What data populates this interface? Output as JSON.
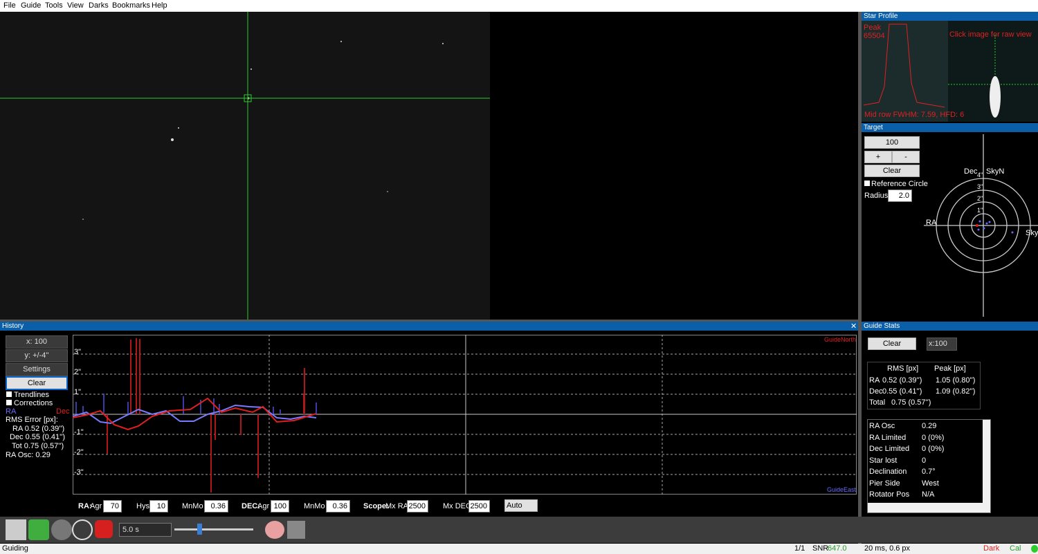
{
  "menu": [
    "File",
    "Guide",
    "Tools",
    "View",
    "Darks",
    "Bookmarks",
    "Help"
  ],
  "star_profile": {
    "title": "Star Profile",
    "peak_label": "Peak",
    "peak_value": "65504",
    "hint": "Click image for raw view",
    "fwhm": "Mid row FWHM: 7.59, HFD: 6"
  },
  "target": {
    "title": "Target",
    "scale": "100",
    "plus": "+",
    "minus": "-",
    "clear": "Clear",
    "ref_circle": "Reference Circle",
    "radius_label": "Radius:",
    "radius": "2.0",
    "dec": "Dec",
    "sky_n": "SkyN",
    "ra": "RA",
    "sky_e": "SkyE",
    "rings": [
      "4\"",
      "3\"",
      "2\"",
      "1\""
    ]
  },
  "history": {
    "title": "History",
    "close": "✕",
    "x_scale": "x: 100",
    "y_scale": "y: +/-4''",
    "settings": "Settings",
    "clear": "Clear",
    "trendlines": "Trendlines",
    "corrections": "Corrections",
    "ra": "RA",
    "dec": "Dec",
    "rms_title": "RMS Error [px]:",
    "rms_rows": [
      "RA  0.52 (0.39'')",
      "Dec  0.55 (0.41'')",
      "Tot  0.75 (0.57'')"
    ],
    "ra_osc": "RA Osc: 0.29",
    "y_labels": [
      "3\"",
      "2\"",
      "1\"",
      "-1\"",
      "-2\"",
      "-3\""
    ],
    "guide_north": "GuideNorth",
    "guide_east": "GuideEast"
  },
  "controls": {
    "ra": "RA:",
    "ra_agr_label": "Agr",
    "ra_agr": "70",
    "hys_label": "Hys",
    "hys": "10",
    "ra_mnmo_label": "MnMo",
    "ra_mnmo": "0.36",
    "dec": "DEC:",
    "dec_agr_label": "Agr",
    "dec_agr": "100",
    "dec_mnmo_label": "MnMo",
    "dec_mnmo": "0.36",
    "scope": "Scope:",
    "mx_ra_label": "Mx RA",
    "mx_ra": "2500",
    "mx_dec_label": "Mx DEC",
    "mx_dec": "2500",
    "mode": "Auto"
  },
  "guide_stats": {
    "title": "Guide Stats",
    "clear": "Clear",
    "scale": "x:100",
    "headers": [
      "RMS [px]",
      "Peak [px]"
    ],
    "rows": [
      [
        "RA",
        "0.52 (0.39'')",
        "1.05 (0.80'')"
      ],
      [
        "Dec",
        "0.55 (0.41'')",
        "1.09 (0.82'')"
      ],
      [
        "Total",
        "0.75 (0.57'')"
      ]
    ],
    "info": [
      [
        "RA Osc",
        "0.29"
      ],
      [
        "RA Limited",
        "0 (0%)"
      ],
      [
        "Dec Limited",
        "0 (0%)"
      ],
      [
        "Star lost",
        "0"
      ],
      [
        "Declination",
        "0.7°"
      ],
      [
        "Pier Side",
        "West"
      ],
      [
        "Rotator Pos",
        "N/A"
      ]
    ]
  },
  "toolbar": {
    "exposure": "5.0 s"
  },
  "status": {
    "state": "Guiding",
    "frames": "1/1",
    "snr_label": "SNR",
    "snr": "647.0",
    "pulse": "20 ms, 0.6 px",
    "dark": "Dark",
    "cal": "Cal"
  }
}
